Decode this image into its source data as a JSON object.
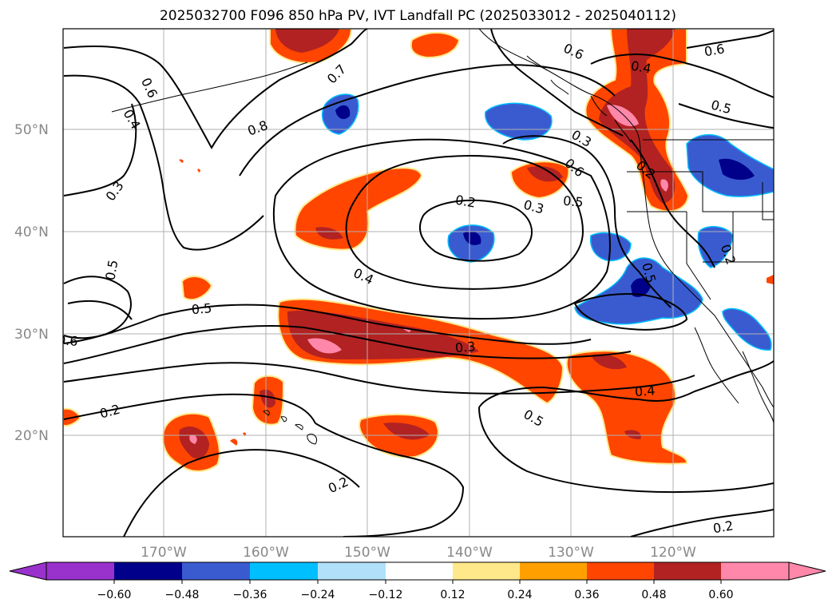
{
  "title": "2025032700 F096 850 hPa PV, IVT Landfall PC (2025033012 - 2025040112)",
  "latitudes": [
    "50°N",
    "40°N",
    "30°N",
    "20°N"
  ],
  "longitudes": [
    "170°W",
    "160°W",
    "150°W",
    "140°W",
    "130°W",
    "120°W"
  ],
  "contour_labels": [
    "0.6",
    "0.4",
    "0.3",
    "0.7",
    "0.8",
    "0.5",
    "0.5",
    "0.6",
    "0.2",
    "0.2",
    "0.4",
    "0.2",
    "0.3",
    "0.5",
    "0.6",
    "0.3",
    "0.3",
    "0.5",
    "0.6",
    "0.4",
    "0.6",
    "0.5",
    "0.2",
    "0.4",
    "0.5",
    "0.2",
    "0.2"
  ],
  "colorbar": {
    "ticks": [
      "−0.60",
      "−0.48",
      "−0.36",
      "−0.24",
      "−0.12",
      "0.12",
      "0.24",
      "0.36",
      "0.48",
      "0.60"
    ],
    "colors": [
      "#9932cc",
      "#00008b",
      "#3a5bd0",
      "#00bfff",
      "#b0e0fa",
      "#ffffff",
      "#ffe88a",
      "#ffa000",
      "#ff4500",
      "#b22222",
      "#ff88aa"
    ]
  },
  "fill_colors": {
    "orange": "#ff4500",
    "red": "#b22222",
    "pink": "#ff88aa",
    "yellow": "#ffe88a",
    "blue": "#3a5bd0",
    "navy": "#00008b",
    "cyan": "#00bfff"
  }
}
